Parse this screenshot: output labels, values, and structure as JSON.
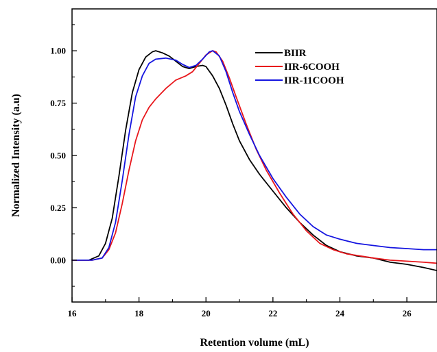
{
  "chart_data": {
    "type": "line",
    "xlabel": "Retention volume (mL)",
    "ylabel": "Normalized Intensity (a.u)",
    "xlim": [
      16,
      26.9
    ],
    "ylim": [
      -0.2,
      1.2
    ],
    "x_ticks": [
      16,
      18,
      20,
      22,
      24,
      26
    ],
    "y_ticks": [
      0.0,
      0.25,
      0.5,
      0.75,
      1.0
    ],
    "x_tick_labels": [
      "16",
      "18",
      "20",
      "22",
      "24",
      "26"
    ],
    "y_tick_labels": [
      "0.00",
      "0.25",
      "0.50",
      "0.75",
      "1.00"
    ],
    "grid": false,
    "legend_position": "top-right",
    "series": [
      {
        "name": "BIIR",
        "color": "#000000",
        "x": [
          16.0,
          16.5,
          16.8,
          17.0,
          17.2,
          17.4,
          17.6,
          17.8,
          18.0,
          18.2,
          18.4,
          18.5,
          18.7,
          18.9,
          19.1,
          19.3,
          19.5,
          19.7,
          19.9,
          20.0,
          20.2,
          20.4,
          20.6,
          20.8,
          21.0,
          21.3,
          21.6,
          22.0,
          22.4,
          22.8,
          23.2,
          23.6,
          24.0,
          24.5,
          25.0,
          25.5,
          26.0,
          26.5,
          26.9
        ],
        "y": [
          0.0,
          0.0,
          0.02,
          0.08,
          0.2,
          0.4,
          0.62,
          0.8,
          0.91,
          0.97,
          0.995,
          1.0,
          0.99,
          0.975,
          0.95,
          0.925,
          0.915,
          0.925,
          0.93,
          0.925,
          0.88,
          0.82,
          0.74,
          0.65,
          0.57,
          0.48,
          0.41,
          0.33,
          0.25,
          0.18,
          0.12,
          0.07,
          0.04,
          0.02,
          0.01,
          -0.01,
          -0.02,
          -0.035,
          -0.05
        ]
      },
      {
        "name": "IIR-6COOH",
        "color": "#e8161b",
        "x": [
          16.0,
          16.6,
          16.9,
          17.1,
          17.3,
          17.5,
          17.7,
          17.9,
          18.1,
          18.3,
          18.5,
          18.8,
          19.1,
          19.4,
          19.6,
          19.8,
          20.0,
          20.2,
          20.3,
          20.5,
          20.7,
          20.9,
          21.2,
          21.5,
          21.8,
          22.2,
          22.6,
          23.0,
          23.4,
          23.8,
          24.2,
          24.6,
          25.0,
          25.5,
          26.0,
          26.5,
          26.9
        ],
        "y": [
          0.0,
          0.0,
          0.01,
          0.05,
          0.13,
          0.27,
          0.43,
          0.57,
          0.67,
          0.73,
          0.77,
          0.82,
          0.86,
          0.88,
          0.9,
          0.94,
          0.98,
          1.0,
          0.995,
          0.95,
          0.87,
          0.78,
          0.65,
          0.53,
          0.43,
          0.32,
          0.22,
          0.14,
          0.08,
          0.05,
          0.03,
          0.02,
          0.01,
          0.0,
          -0.005,
          -0.01,
          -0.015
        ]
      },
      {
        "name": "IIR-11COOH",
        "color": "#1414e0",
        "x": [
          16.0,
          16.6,
          16.9,
          17.1,
          17.3,
          17.5,
          17.7,
          17.9,
          18.1,
          18.3,
          18.5,
          18.8,
          19.1,
          19.3,
          19.5,
          19.7,
          19.9,
          20.1,
          20.2,
          20.4,
          20.6,
          20.8,
          21.0,
          21.3,
          21.6,
          22.0,
          22.4,
          22.8,
          23.2,
          23.6,
          24.0,
          24.5,
          25.0,
          25.5,
          26.0,
          26.5,
          26.9
        ],
        "y": [
          0.0,
          0.0,
          0.01,
          0.06,
          0.18,
          0.38,
          0.6,
          0.78,
          0.88,
          0.94,
          0.96,
          0.965,
          0.955,
          0.935,
          0.92,
          0.93,
          0.96,
          0.995,
          1.0,
          0.975,
          0.9,
          0.8,
          0.71,
          0.6,
          0.5,
          0.39,
          0.3,
          0.22,
          0.16,
          0.12,
          0.1,
          0.08,
          0.07,
          0.06,
          0.055,
          0.05,
          0.05
        ]
      }
    ]
  }
}
